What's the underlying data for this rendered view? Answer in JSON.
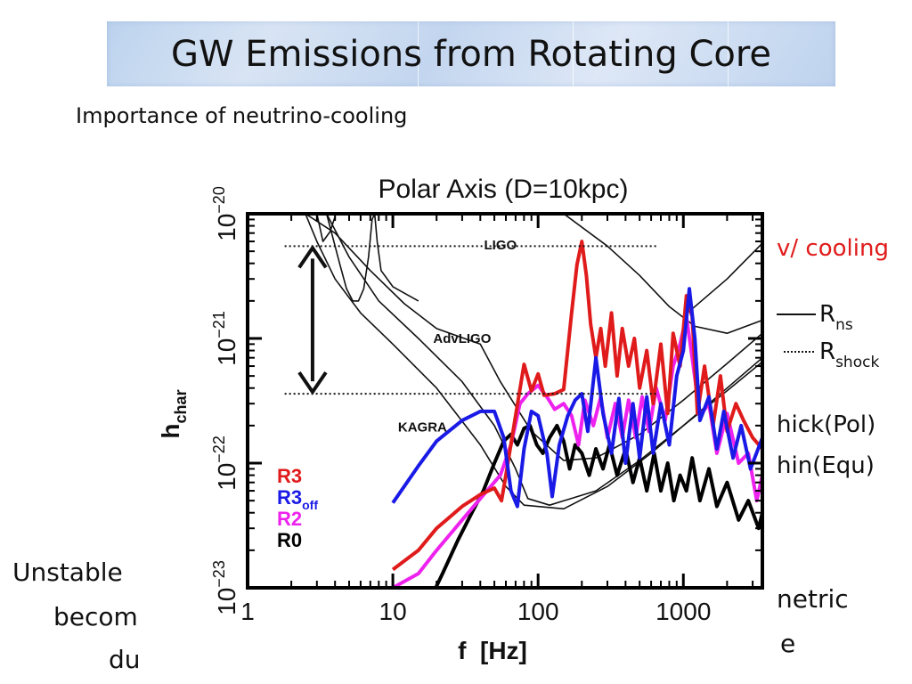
{
  "slide": {
    "title": "GW Emissions from Rotating Core",
    "subtitle": "Importance of neutrino-cooling",
    "left_fragments": [
      "Unstable",
      "becom",
      "du"
    ],
    "right_fragments": {
      "cooling": "v/ cooling",
      "rns_base": "R",
      "rns_sub": "ns",
      "rshock_base": "R",
      "rshock_sub": "shock",
      "thick": "hick(Pol)",
      "thin": "hin(Equ)",
      "metric": "netric",
      "e": "e"
    },
    "colors": {
      "cooling": "#e01b1b",
      "text": "#111111"
    }
  },
  "chart_data": {
    "type": "line",
    "title": "Polar Axis (D=10kpc)",
    "xlabel": "f  [Hz]",
    "ylabel_base": "h",
    "ylabel_sub": "char",
    "xscale": "log",
    "yscale": "log",
    "xlim": [
      1,
      3500
    ],
    "ylim": [
      1e-23,
      1e-20
    ],
    "x_ticks": [
      {
        "v": 1,
        "label": "1"
      },
      {
        "v": 10,
        "label": "10"
      },
      {
        "v": 100,
        "label": "100"
      },
      {
        "v": 1000,
        "label": "1000"
      }
    ],
    "y_ticks": [
      {
        "v": 1e-23,
        "base": "10",
        "exp": "−23"
      },
      {
        "v": 1e-22,
        "base": "10",
        "exp": "−22"
      },
      {
        "v": 1e-21,
        "base": "10",
        "exp": "−21"
      },
      {
        "v": 1e-20,
        "base": "10",
        "exp": "−20"
      }
    ],
    "detector_labels": [
      {
        "text": "LIGO",
        "x": 55,
        "y": 5.2e-21
      },
      {
        "text": "AdvLIGO",
        "x": 30,
        "y": 9.2e-22
      },
      {
        "text": "KAGRA",
        "x": 16,
        "y": 1.8e-22
      }
    ],
    "hlines": [
      {
        "y": 5.5e-21,
        "x0": 1.8,
        "x1": 650
      },
      {
        "y": 3.6e-22,
        "x0": 1.8,
        "x1": 650
      }
    ],
    "arrow": {
      "x": 2.8,
      "y_top": 5.5e-21,
      "y_bottom": 3.6e-22
    },
    "legend": [
      {
        "base": "R3",
        "sub": "",
        "color": "#e01b1b"
      },
      {
        "base": "R3",
        "sub": "off",
        "color": "#1a1ae6"
      },
      {
        "base": "R2",
        "sub": "",
        "color": "#ee22ee"
      },
      {
        "base": "R0",
        "sub": "",
        "color": "#000000"
      }
    ],
    "noise_curves": [
      {
        "name": "LIGO",
        "points": [
          [
            2.5,
            1e-20
          ],
          [
            4,
            7e-21
          ],
          [
            7,
            3.5e-21
          ],
          [
            12,
            1.9e-21
          ],
          [
            20,
            1.2e-21
          ],
          [
            40,
            9e-22
          ],
          [
            55,
            4.5e-22
          ],
          [
            90,
            1.8e-22
          ],
          [
            150,
            1.05e-22
          ],
          [
            250,
            1.1e-22
          ],
          [
            500,
            1.7e-22
          ],
          [
            1000,
            3.2e-22
          ],
          [
            2000,
            6.3e-22
          ],
          [
            3500,
            1.1e-21
          ]
        ]
      },
      {
        "name": "AdvLIGO",
        "points": [
          [
            2.5,
            1e-20
          ],
          [
            3,
            6e-21
          ],
          [
            4,
            3e-21
          ],
          [
            6,
            1.6e-21
          ],
          [
            10,
            9e-22
          ],
          [
            20,
            4e-22
          ],
          [
            40,
            1.4e-22
          ],
          [
            60,
            6.5e-23
          ],
          [
            80,
            4.6e-23
          ],
          [
            150,
            4.3e-23
          ],
          [
            300,
            6.5e-23
          ],
          [
            600,
            1.2e-22
          ],
          [
            1000,
            2e-22
          ],
          [
            2000,
            4e-22
          ],
          [
            3500,
            7e-22
          ]
        ]
      },
      {
        "name": "KAGRA",
        "points": [
          [
            3.5,
            1e-20
          ],
          [
            5,
            4.5e-21
          ],
          [
            8,
            2e-21
          ],
          [
            15,
            1e-21
          ],
          [
            30,
            4.5e-22
          ],
          [
            50,
            2e-22
          ],
          [
            70,
            9e-23
          ],
          [
            85,
            5.2e-23
          ],
          [
            120,
            4.6e-23
          ],
          [
            250,
            6e-23
          ],
          [
            500,
            1.05e-22
          ],
          [
            1000,
            2e-22
          ],
          [
            2000,
            3.8e-22
          ],
          [
            3500,
            6.5e-22
          ]
        ]
      },
      {
        "name": "LIGO-low-1",
        "points": [
          [
            3,
            1e-20
          ],
          [
            3.3,
            6e-21
          ],
          [
            3.7,
            7.2e-21
          ],
          [
            4,
            9.5e-21
          ]
        ]
      },
      {
        "name": "LIGO-low-2",
        "points": [
          [
            3.5,
            1e-20
          ],
          [
            4.3,
            4e-21
          ],
          [
            4.8,
            2.5e-21
          ],
          [
            5.3,
            2e-21
          ],
          [
            5.8,
            2e-21
          ],
          [
            6.3,
            2.5e-21
          ],
          [
            6.8,
            4.5e-21
          ],
          [
            7.2,
            9e-21
          ],
          [
            7.5,
            1e-20
          ],
          [
            7.8,
            6e-21
          ],
          [
            8.3,
            3.5e-21
          ],
          [
            10,
            2.6e-21
          ],
          [
            15,
            2e-21
          ]
        ]
      },
      {
        "name": "LIGO-high",
        "points": [
          [
            150,
            1e-20
          ],
          [
            300,
            5.5e-21
          ],
          [
            500,
            3.2e-21
          ],
          [
            800,
            1.8e-21
          ],
          [
            1200,
            1.25e-21
          ],
          [
            2000,
            1.1e-21
          ],
          [
            3500,
            1.4e-21
          ]
        ]
      },
      {
        "name": "upper-diag",
        "points": [
          [
            1000,
            1.5e-21
          ],
          [
            2000,
            3e-21
          ],
          [
            3500,
            5.8e-21
          ]
        ]
      }
    ],
    "series": [
      {
        "name": "R3",
        "color": "#e01b1b",
        "points": [
          [
            10,
            1.4e-23
          ],
          [
            15,
            2e-23
          ],
          [
            20,
            3e-23
          ],
          [
            30,
            4.5e-23
          ],
          [
            40,
            5.6e-23
          ],
          [
            50,
            6.3e-23
          ],
          [
            56,
            5e-23
          ],
          [
            60,
            8e-23
          ],
          [
            70,
            2.4e-22
          ],
          [
            80,
            6.2e-22
          ],
          [
            90,
            3.8e-22
          ],
          [
            100,
            5.2e-22
          ],
          [
            110,
            3.5e-22
          ],
          [
            130,
            3.6e-22
          ],
          [
            150,
            3.9e-22
          ],
          [
            170,
            1.6e-21
          ],
          [
            185,
            3.9e-21
          ],
          [
            200,
            6e-21
          ],
          [
            215,
            3.2e-21
          ],
          [
            230,
            1.3e-21
          ],
          [
            250,
            7e-22
          ],
          [
            270,
            1.2e-21
          ],
          [
            290,
            6e-22
          ],
          [
            320,
            1.6e-21
          ],
          [
            350,
            5e-22
          ],
          [
            380,
            1.2e-21
          ],
          [
            420,
            6e-22
          ],
          [
            460,
            1e-21
          ],
          [
            500,
            4e-22
          ],
          [
            560,
            8e-22
          ],
          [
            620,
            3e-22
          ],
          [
            700,
            9e-22
          ],
          [
            780,
            2.5e-22
          ],
          [
            850,
            1.1e-21
          ],
          [
            950,
            6e-22
          ],
          [
            1050,
            2.2e-21
          ],
          [
            1150,
            1.5e-21
          ],
          [
            1250,
            2.5e-22
          ],
          [
            1400,
            6e-22
          ],
          [
            1600,
            2e-22
          ],
          [
            1800,
            5e-22
          ],
          [
            2000,
            1.8e-22
          ],
          [
            2300,
            3e-22
          ],
          [
            2600,
            2.2e-22
          ],
          [
            3000,
            1.6e-22
          ],
          [
            3500,
            1.3e-22
          ]
        ]
      },
      {
        "name": "R3off",
        "color": "#1a1ae6",
        "points": [
          [
            10,
            4.8e-23
          ],
          [
            15,
            9.5e-23
          ],
          [
            20,
            1.5e-22
          ],
          [
            30,
            2.2e-22
          ],
          [
            40,
            2.6e-22
          ],
          [
            50,
            2.6e-22
          ],
          [
            58,
            1.6e-22
          ],
          [
            65,
            6e-23
          ],
          [
            72,
            4.5e-23
          ],
          [
            80,
            1.3e-22
          ],
          [
            90,
            2.6e-22
          ],
          [
            100,
            2.4e-22
          ],
          [
            115,
            1.2e-22
          ],
          [
            125,
            5.4e-23
          ],
          [
            140,
            1.4e-22
          ],
          [
            160,
            2.4e-22
          ],
          [
            180,
            3.2e-22
          ],
          [
            200,
            3.6e-22
          ],
          [
            220,
            1.8e-22
          ],
          [
            250,
            7e-22
          ],
          [
            280,
            2.5e-22
          ],
          [
            320,
            1.2e-22
          ],
          [
            360,
            3.3e-22
          ],
          [
            400,
            1e-22
          ],
          [
            450,
            3e-22
          ],
          [
            500,
            1.1e-22
          ],
          [
            560,
            3.4e-22
          ],
          [
            620,
            1.2e-22
          ],
          [
            700,
            3e-22
          ],
          [
            800,
            1.4e-22
          ],
          [
            900,
            5e-22
          ],
          [
            1000,
            8e-22
          ],
          [
            1100,
            2.5e-21
          ],
          [
            1200,
            1e-21
          ],
          [
            1300,
            2.2e-22
          ],
          [
            1500,
            3.4e-22
          ],
          [
            1700,
            1.3e-22
          ],
          [
            1900,
            2.6e-22
          ],
          [
            2200,
            1.1e-22
          ],
          [
            2500,
            2e-22
          ],
          [
            2900,
            9e-23
          ],
          [
            3500,
            1.6e-22
          ]
        ]
      },
      {
        "name": "R2",
        "color": "#ee22ee",
        "points": [
          [
            10,
            1e-23
          ],
          [
            15,
            1.3e-23
          ],
          [
            20,
            2e-23
          ],
          [
            30,
            3.5e-23
          ],
          [
            40,
            5.2e-23
          ],
          [
            55,
            8e-23
          ],
          [
            65,
            1.4e-22
          ],
          [
            75,
            3e-22
          ],
          [
            85,
            3.6e-22
          ],
          [
            100,
            4.2e-22
          ],
          [
            115,
            3.4e-22
          ],
          [
            130,
            2.7e-22
          ],
          [
            150,
            3e-22
          ],
          [
            170,
            2.4e-22
          ],
          [
            190,
            1.4e-22
          ],
          [
            210,
            3.2e-22
          ],
          [
            240,
            2e-22
          ],
          [
            270,
            3.4e-22
          ],
          [
            300,
            1.6e-22
          ],
          [
            340,
            3e-22
          ],
          [
            380,
            1.6e-22
          ],
          [
            420,
            3.2e-22
          ],
          [
            470,
            1.6e-22
          ],
          [
            520,
            3.4e-22
          ],
          [
            580,
            1.8e-22
          ],
          [
            650,
            4e-22
          ],
          [
            750,
            2.2e-22
          ],
          [
            850,
            6e-22
          ],
          [
            950,
            9e-22
          ],
          [
            1050,
            1.5e-21
          ],
          [
            1150,
            7e-22
          ],
          [
            1300,
            2.4e-22
          ],
          [
            1500,
            3e-22
          ],
          [
            1700,
            1.2e-22
          ],
          [
            2000,
            2.5e-22
          ],
          [
            2400,
            1e-22
          ],
          [
            2800,
            1.2e-22
          ],
          [
            3200,
            5e-23
          ],
          [
            3500,
            8e-23
          ]
        ]
      },
      {
        "name": "R0",
        "color": "#000000",
        "points": [
          [
            18,
            8e-24
          ],
          [
            22,
            1.3e-23
          ],
          [
            28,
            2.4e-23
          ],
          [
            35,
            4e-23
          ],
          [
            42,
            6e-23
          ],
          [
            50,
            1e-22
          ],
          [
            58,
            1.5e-22
          ],
          [
            65,
            1.7e-22
          ],
          [
            72,
            1.4e-22
          ],
          [
            80,
            1.9e-22
          ],
          [
            88,
            2e-22
          ],
          [
            98,
            1.4e-22
          ],
          [
            108,
            1.2e-22
          ],
          [
            120,
            1.6e-22
          ],
          [
            135,
            2e-22
          ],
          [
            150,
            1.5e-22
          ],
          [
            165,
            9e-23
          ],
          [
            180,
            1.4e-22
          ],
          [
            200,
            1.2e-22
          ],
          [
            225,
            8e-23
          ],
          [
            250,
            1.3e-22
          ],
          [
            280,
            9e-23
          ],
          [
            310,
            1.4e-22
          ],
          [
            350,
            8e-23
          ],
          [
            400,
            1.3e-22
          ],
          [
            450,
            7e-23
          ],
          [
            500,
            1.1e-22
          ],
          [
            560,
            6e-23
          ],
          [
            630,
            1.2e-22
          ],
          [
            700,
            6e-23
          ],
          [
            780,
            1e-22
          ],
          [
            860,
            5e-23
          ],
          [
            950,
            8e-23
          ],
          [
            1050,
            6e-23
          ],
          [
            1150,
            1.1e-22
          ],
          [
            1300,
            5e-23
          ],
          [
            1500,
            9e-23
          ],
          [
            1700,
            4.5e-23
          ],
          [
            2000,
            7e-23
          ],
          [
            2400,
            3.5e-23
          ],
          [
            2800,
            5e-23
          ],
          [
            3300,
            3e-23
          ],
          [
            3500,
            4e-23
          ]
        ]
      }
    ]
  }
}
